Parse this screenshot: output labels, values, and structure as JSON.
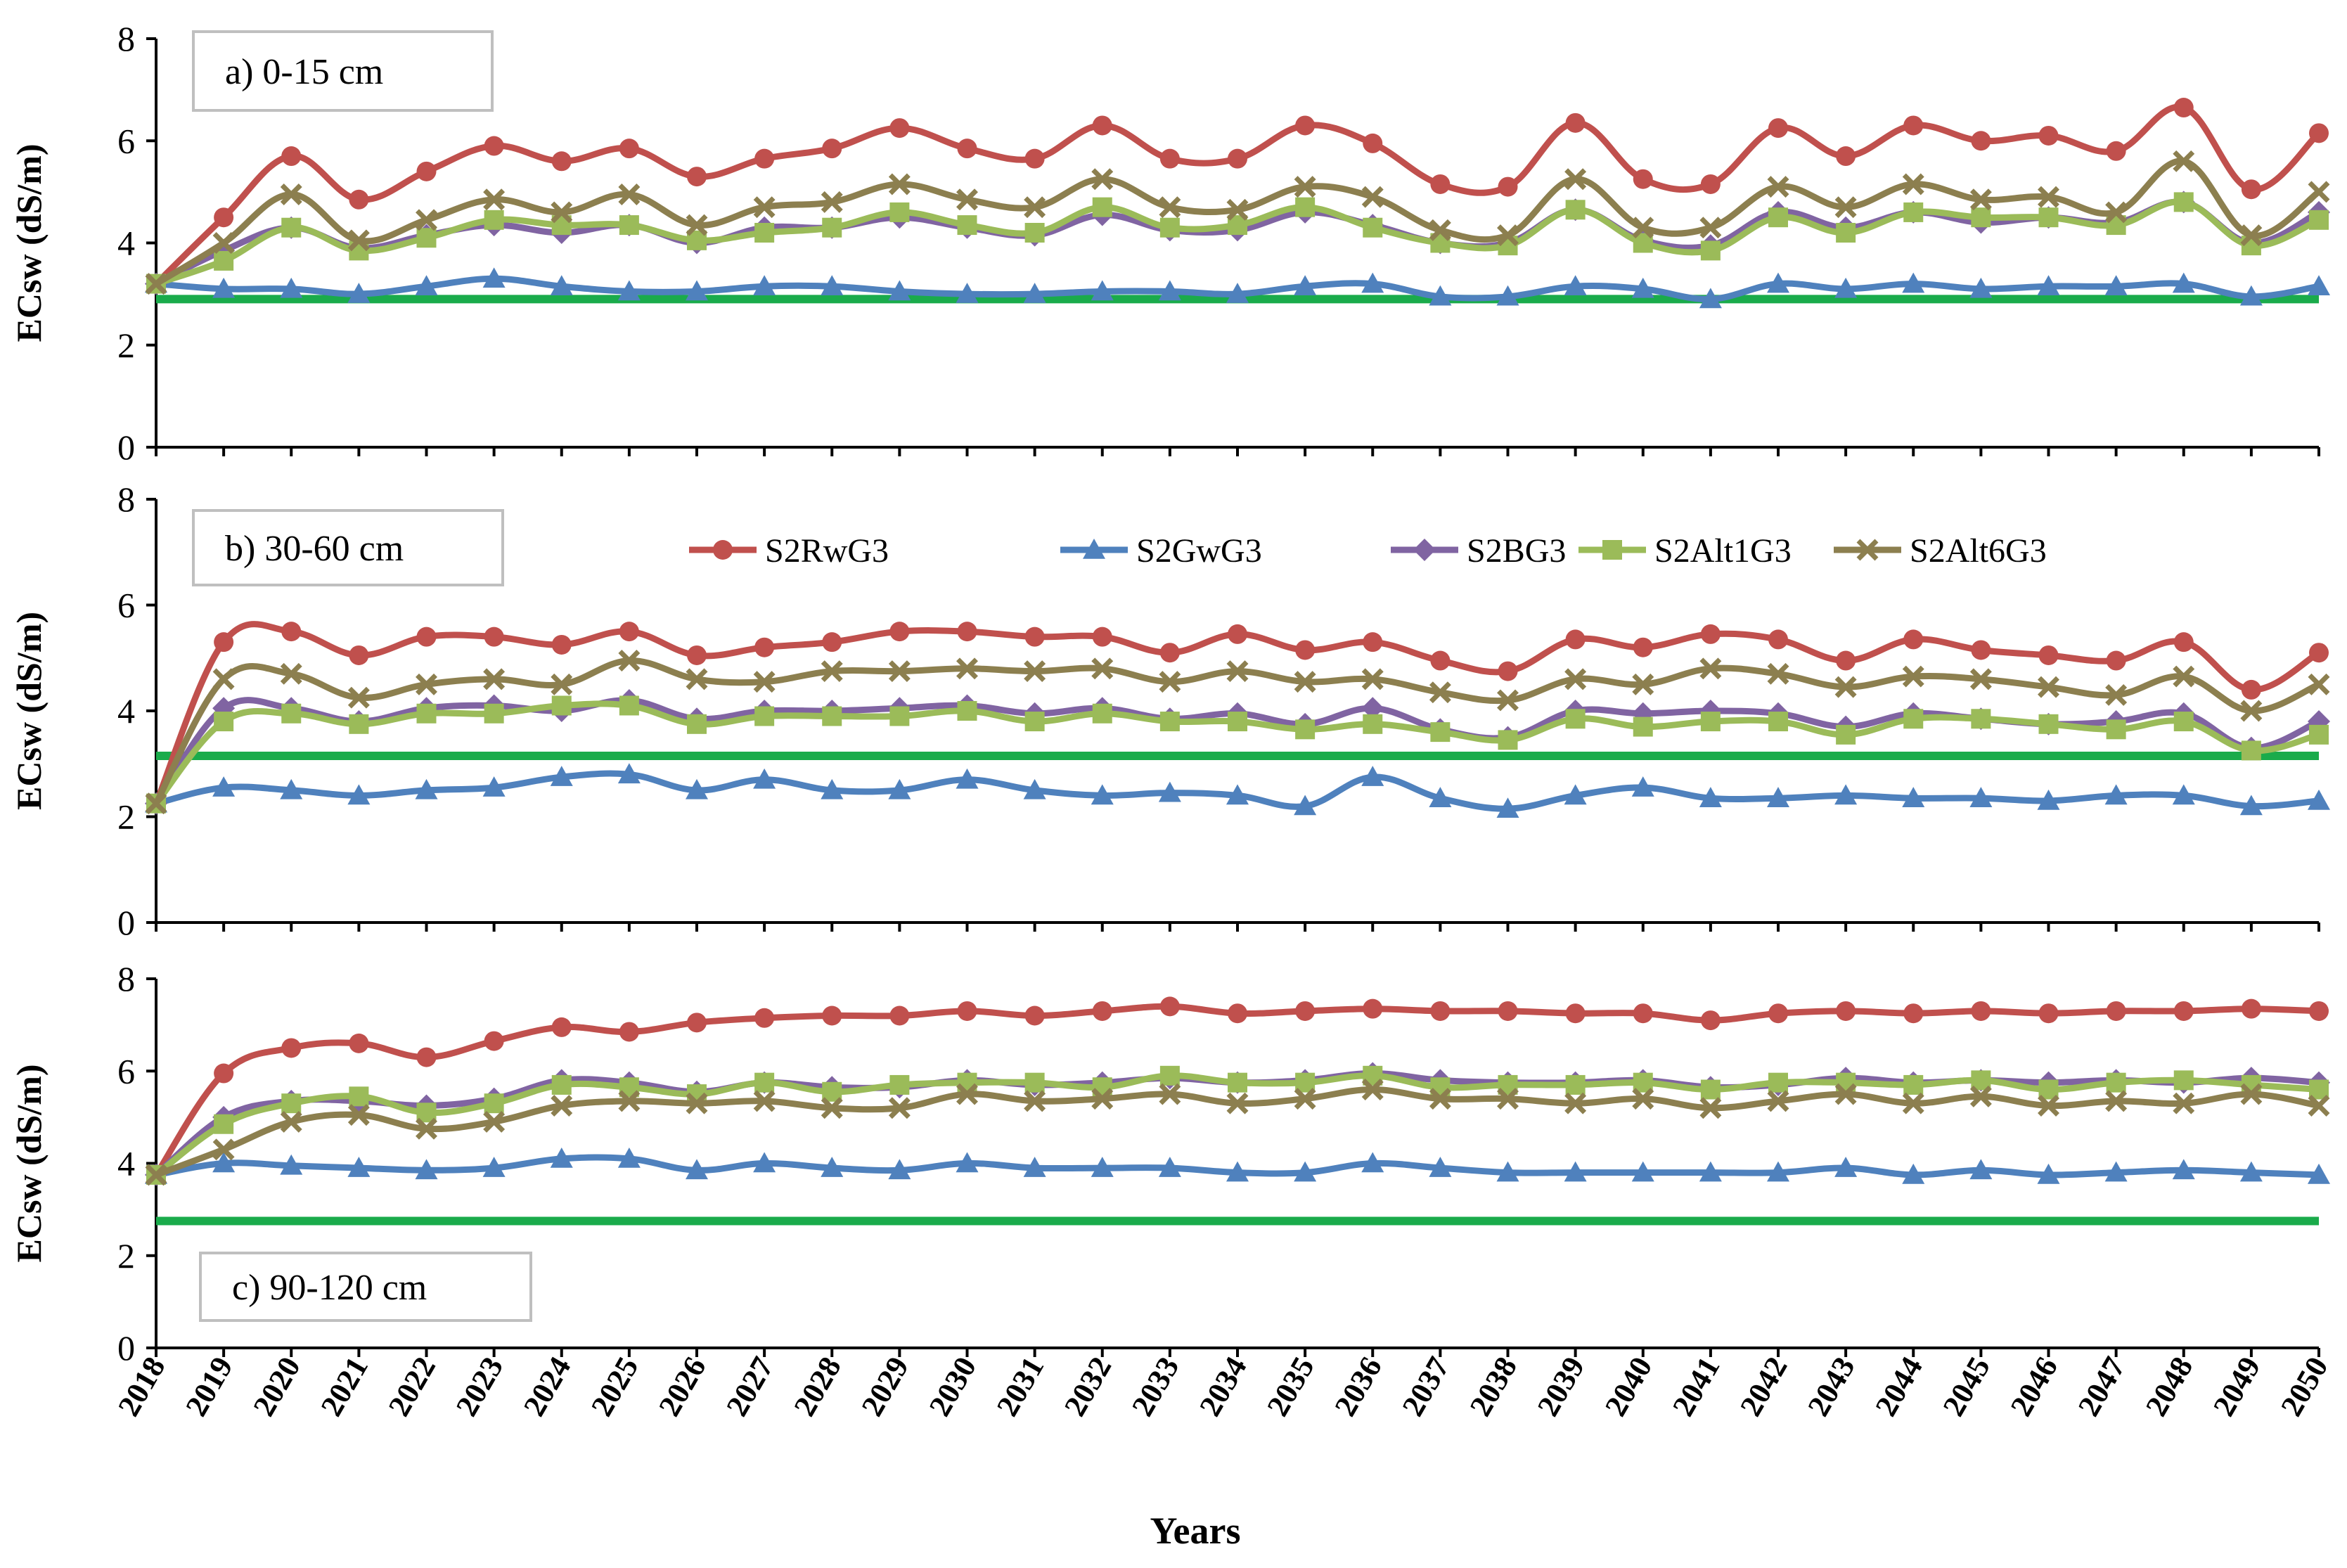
{
  "chart_data": {
    "type": "line",
    "xlabel": "Years",
    "ylabel": "ECsw (dS/m)",
    "x": [
      2018,
      2019,
      2020,
      2021,
      2022,
      2023,
      2024,
      2025,
      2026,
      2027,
      2028,
      2029,
      2030,
      2031,
      2032,
      2033,
      2034,
      2035,
      2036,
      2037,
      2038,
      2039,
      2040,
      2041,
      2042,
      2043,
      2044,
      2045,
      2046,
      2047,
      2048,
      2049,
      2050
    ],
    "ylim": [
      0,
      8
    ],
    "yticks": [
      0,
      2,
      4,
      6,
      8
    ],
    "legend": [
      "S2RwG3",
      "S2GwG3",
      "S2BG3",
      "S2Alt1G3",
      "S2Alt6G3"
    ],
    "colors": {
      "S2RwG3": "#c0504d",
      "S2GwG3": "#4f81bd",
      "S2BG3": "#8064a2",
      "S2Alt1G3": "#9bbb59",
      "S2Alt6G3": "#8c7f4f",
      "threshold": "#1aab4b"
    },
    "panels": [
      {
        "label": "a) 0-15 cm",
        "threshold": 2.9,
        "series": [
          {
            "name": "S2RwG3",
            "values": [
              3.2,
              4.5,
              5.7,
              4.85,
              5.4,
              5.9,
              5.6,
              5.85,
              5.3,
              5.65,
              5.85,
              6.25,
              5.85,
              5.65,
              6.3,
              5.65,
              5.65,
              6.3,
              5.95,
              5.15,
              5.1,
              6.35,
              5.25,
              5.15,
              6.25,
              5.7,
              6.3,
              6.0,
              6.1,
              5.8,
              6.65,
              5.05,
              6.15
            ]
          },
          {
            "name": "S2GwG3",
            "values": [
              3.2,
              3.1,
              3.1,
              3.0,
              3.15,
              3.3,
              3.15,
              3.05,
              3.05,
              3.15,
              3.15,
              3.05,
              3.0,
              3.0,
              3.05,
              3.05,
              3.0,
              3.15,
              3.2,
              2.95,
              2.95,
              3.15,
              3.1,
              2.9,
              3.2,
              3.1,
              3.2,
              3.1,
              3.15,
              3.15,
              3.2,
              2.95,
              3.15
            ]
          },
          {
            "name": "S2BG3",
            "values": [
              3.2,
              3.85,
              4.3,
              3.9,
              4.15,
              4.35,
              4.2,
              4.35,
              4.0,
              4.3,
              4.3,
              4.5,
              4.3,
              4.15,
              4.55,
              4.25,
              4.25,
              4.6,
              4.35,
              4.0,
              4.0,
              4.65,
              4.05,
              3.95,
              4.6,
              4.3,
              4.6,
              4.4,
              4.5,
              4.4,
              4.8,
              4.0,
              4.6
            ]
          },
          {
            "name": "S2Alt1G3",
            "values": [
              3.2,
              3.65,
              4.3,
              3.85,
              4.1,
              4.45,
              4.35,
              4.35,
              4.05,
              4.2,
              4.3,
              4.6,
              4.35,
              4.2,
              4.7,
              4.3,
              4.35,
              4.7,
              4.3,
              4.0,
              3.95,
              4.65,
              4.0,
              3.85,
              4.5,
              4.2,
              4.6,
              4.5,
              4.5,
              4.35,
              4.8,
              3.95,
              4.45
            ]
          },
          {
            "name": "S2Alt6G3",
            "values": [
              3.2,
              4.0,
              4.95,
              4.05,
              4.45,
              4.85,
              4.6,
              4.95,
              4.35,
              4.7,
              4.8,
              5.15,
              4.85,
              4.7,
              5.25,
              4.7,
              4.65,
              5.1,
              4.9,
              4.25,
              4.15,
              5.25,
              4.3,
              4.3,
              5.1,
              4.7,
              5.15,
              4.85,
              4.9,
              4.6,
              5.6,
              4.15,
              5.0
            ]
          }
        ]
      },
      {
        "label": "b) 30-60 cm",
        "threshold": 3.15,
        "series": [
          {
            "name": "S2RwG3",
            "values": [
              2.25,
              5.3,
              5.5,
              5.05,
              5.4,
              5.4,
              5.25,
              5.5,
              5.05,
              5.2,
              5.3,
              5.5,
              5.5,
              5.4,
              5.4,
              5.1,
              5.45,
              5.15,
              5.3,
              4.95,
              4.75,
              5.35,
              5.2,
              5.45,
              5.35,
              4.95,
              5.35,
              5.15,
              5.05,
              4.95,
              5.3,
              4.4,
              5.1
            ]
          },
          {
            "name": "S2GwG3",
            "values": [
              2.25,
              2.55,
              2.5,
              2.4,
              2.5,
              2.55,
              2.75,
              2.8,
              2.5,
              2.7,
              2.5,
              2.5,
              2.7,
              2.5,
              2.4,
              2.45,
              2.4,
              2.2,
              2.75,
              2.35,
              2.15,
              2.4,
              2.55,
              2.35,
              2.35,
              2.4,
              2.35,
              2.35,
              2.3,
              2.4,
              2.4,
              2.2,
              2.3
            ]
          },
          {
            "name": "S2BG3",
            "values": [
              2.25,
              4.05,
              4.05,
              3.8,
              4.05,
              4.1,
              4.0,
              4.2,
              3.85,
              4.0,
              4.0,
              4.05,
              4.1,
              3.95,
              4.05,
              3.85,
              3.95,
              3.75,
              4.05,
              3.65,
              3.5,
              4.0,
              3.95,
              4.0,
              3.95,
              3.7,
              3.95,
              3.85,
              3.75,
              3.8,
              3.95,
              3.3,
              3.8
            ]
          },
          {
            "name": "S2Alt1G3",
            "values": [
              2.25,
              3.8,
              3.95,
              3.75,
              3.95,
              3.95,
              4.1,
              4.1,
              3.75,
              3.9,
              3.9,
              3.9,
              4.0,
              3.8,
              3.95,
              3.8,
              3.8,
              3.65,
              3.75,
              3.6,
              3.45,
              3.85,
              3.7,
              3.8,
              3.8,
              3.55,
              3.85,
              3.85,
              3.75,
              3.65,
              3.8,
              3.25,
              3.55
            ]
          },
          {
            "name": "S2Alt6G3",
            "values": [
              2.25,
              4.6,
              4.7,
              4.25,
              4.5,
              4.6,
              4.5,
              4.95,
              4.6,
              4.55,
              4.75,
              4.75,
              4.8,
              4.75,
              4.8,
              4.55,
              4.75,
              4.55,
              4.6,
              4.35,
              4.2,
              4.6,
              4.5,
              4.8,
              4.7,
              4.45,
              4.65,
              4.6,
              4.45,
              4.3,
              4.65,
              4.0,
              4.5
            ]
          }
        ]
      },
      {
        "label": "c) 90-120 cm",
        "threshold": 2.75,
        "series": [
          {
            "name": "S2RwG3",
            "values": [
              3.75,
              5.95,
              6.5,
              6.6,
              6.3,
              6.65,
              6.95,
              6.85,
              7.05,
              7.15,
              7.2,
              7.2,
              7.3,
              7.2,
              7.3,
              7.4,
              7.25,
              7.3,
              7.35,
              7.3,
              7.3,
              7.25,
              7.25,
              7.1,
              7.25,
              7.3,
              7.25,
              7.3,
              7.25,
              7.3,
              7.3,
              7.35,
              7.3
            ]
          },
          {
            "name": "S2GwG3",
            "values": [
              3.75,
              4.0,
              3.95,
              3.9,
              3.85,
              3.9,
              4.1,
              4.1,
              3.85,
              4.0,
              3.9,
              3.85,
              4.0,
              3.9,
              3.9,
              3.9,
              3.8,
              3.8,
              4.0,
              3.9,
              3.8,
              3.8,
              3.8,
              3.8,
              3.8,
              3.9,
              3.75,
              3.85,
              3.75,
              3.8,
              3.85,
              3.8,
              3.75
            ]
          },
          {
            "name": "S2BG3",
            "values": [
              3.75,
              5.0,
              5.35,
              5.35,
              5.25,
              5.4,
              5.8,
              5.75,
              5.55,
              5.75,
              5.65,
              5.65,
              5.8,
              5.7,
              5.75,
              5.85,
              5.75,
              5.8,
              5.95,
              5.8,
              5.75,
              5.75,
              5.8,
              5.65,
              5.7,
              5.85,
              5.75,
              5.8,
              5.75,
              5.8,
              5.75,
              5.85,
              5.75
            ]
          },
          {
            "name": "S2Alt1G3",
            "values": [
              3.75,
              4.85,
              5.3,
              5.45,
              5.1,
              5.3,
              5.7,
              5.65,
              5.5,
              5.75,
              5.55,
              5.7,
              5.75,
              5.75,
              5.65,
              5.9,
              5.75,
              5.75,
              5.9,
              5.65,
              5.7,
              5.7,
              5.75,
              5.6,
              5.75,
              5.75,
              5.7,
              5.8,
              5.6,
              5.75,
              5.8,
              5.7,
              5.6
            ]
          },
          {
            "name": "S2Alt6G3",
            "values": [
              3.75,
              4.3,
              4.9,
              5.05,
              4.75,
              4.9,
              5.25,
              5.35,
              5.3,
              5.35,
              5.2,
              5.2,
              5.5,
              5.35,
              5.4,
              5.5,
              5.3,
              5.4,
              5.6,
              5.4,
              5.4,
              5.3,
              5.4,
              5.2,
              5.35,
              5.5,
              5.3,
              5.45,
              5.25,
              5.35,
              5.3,
              5.5,
              5.25
            ]
          }
        ]
      }
    ]
  }
}
